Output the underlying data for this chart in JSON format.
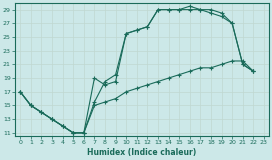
{
  "xlabel": "Humidex (Indice chaleur)",
  "bg_color": "#cce8e8",
  "grid_color": "#b8d8d8",
  "line_color": "#1a6b5a",
  "xlim": [
    -0.5,
    23.5
  ],
  "ylim": [
    10.5,
    30
  ],
  "xticks": [
    0,
    1,
    2,
    3,
    4,
    5,
    6,
    7,
    8,
    9,
    10,
    11,
    12,
    13,
    14,
    15,
    16,
    17,
    18,
    19,
    20,
    21,
    22,
    23
  ],
  "yticks": [
    11,
    13,
    15,
    17,
    19,
    21,
    23,
    25,
    27,
    29
  ],
  "curve1_x": [
    0,
    1,
    2,
    3,
    4,
    5,
    6,
    7,
    8,
    9,
    10,
    11,
    12,
    13,
    14,
    15,
    16,
    17,
    18,
    19,
    20,
    21,
    22
  ],
  "curve1_y": [
    17,
    15,
    14,
    13,
    12,
    11,
    11,
    19,
    18,
    18.5,
    25.5,
    26,
    26.5,
    29,
    29,
    29,
    29.5,
    29,
    29,
    28.5,
    27,
    21,
    20
  ],
  "curve2_x": [
    0,
    1,
    2,
    3,
    4,
    5,
    6,
    7,
    8,
    9,
    10,
    11,
    12,
    13,
    14,
    15,
    16,
    17,
    18,
    19,
    20,
    21,
    22
  ],
  "curve2_y": [
    17,
    15,
    14,
    13,
    12,
    11,
    11,
    15.5,
    18.5,
    19.5,
    25.5,
    26,
    26.5,
    29,
    29,
    29,
    29,
    29,
    28.5,
    28,
    27,
    21,
    20
  ],
  "curve3_x": [
    0,
    1,
    2,
    3,
    4,
    5,
    6,
    7,
    8,
    9,
    10,
    11,
    12,
    13,
    14,
    15,
    16,
    17,
    18,
    19,
    20,
    21,
    22
  ],
  "curve3_y": [
    17,
    15,
    14,
    13,
    12,
    11,
    11,
    15,
    15.5,
    16,
    17,
    17.5,
    18,
    18.5,
    19,
    19.5,
    20,
    20.5,
    20.5,
    21,
    21.5,
    21.5,
    20
  ]
}
